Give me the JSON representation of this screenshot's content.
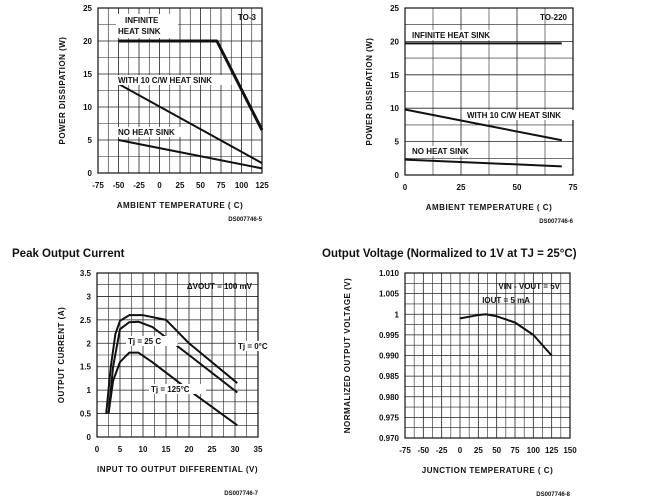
{
  "chart_data": [
    {
      "type": "line",
      "title": "",
      "xlabel": "AMBIENT TEMPERATURE ( C)",
      "ylabel": "POWER DISSIPATION (W)",
      "xlim": [
        -75,
        125
      ],
      "ylim": [
        0,
        25
      ],
      "xticks": [
        -75,
        -50,
        -25,
        0,
        25,
        50,
        75,
        100,
        125
      ],
      "yticks": [
        0,
        5,
        10,
        15,
        20,
        25
      ],
      "grid": true,
      "annotation": "TO-3",
      "code": "DS007746-5",
      "series": [
        {
          "name": "INFINITE HEAT SINK",
          "x": [
            -50,
            70,
            125
          ],
          "y": [
            20,
            20,
            6.5
          ],
          "width": 3
        },
        {
          "name": "WITH 10 C/W HEAT SINK",
          "x": [
            -50,
            125
          ],
          "y": [
            13.5,
            1.5
          ],
          "width": 2
        },
        {
          "name": "NO HEAT SINK",
          "x": [
            -50,
            125
          ],
          "y": [
            5,
            0.7
          ],
          "width": 2
        }
      ]
    },
    {
      "type": "line",
      "title": "",
      "xlabel": "AMBIENT TEMPERATURE ( C)",
      "ylabel": "POWER DISSIPATION (W)",
      "xlim": [
        0,
        75
      ],
      "ylim": [
        0,
        25
      ],
      "xticks": [
        0,
        25,
        50,
        75
      ],
      "yticks": [
        0,
        5,
        10,
        15,
        20,
        25
      ],
      "grid": true,
      "annotation": "TO-220",
      "code": "DS007746-6",
      "series": [
        {
          "name": "INFINITE HEAT SINK",
          "x": [
            0,
            70
          ],
          "y": [
            19.7,
            19.7
          ],
          "width": 2
        },
        {
          "name": "WITH 10 C/W HEAT SINK",
          "x": [
            0,
            70
          ],
          "y": [
            9.8,
            5.2
          ],
          "width": 2
        },
        {
          "name": "NO HEAT SINK",
          "x": [
            0,
            70
          ],
          "y": [
            2.3,
            1.3
          ],
          "width": 2
        }
      ]
    },
    {
      "type": "line",
      "title": "Peak Output Current",
      "xlabel": "INPUT TO OUTPUT DIFFERENTIAL (V)",
      "ylabel": "OUTPUT CURRENT (A)",
      "xlim": [
        0,
        35
      ],
      "ylim": [
        0,
        3.5
      ],
      "xticks": [
        0,
        5,
        10,
        15,
        20,
        25,
        30,
        35
      ],
      "yticks": [
        0,
        0.5,
        1,
        1.5,
        2,
        2.5,
        3,
        3.5
      ],
      "grid": true,
      "annotation": "ΔVOUT = 100 mV",
      "code": "DS007746-7",
      "series": [
        {
          "name": "Tj = 0°C",
          "x": [
            2,
            3,
            4,
            5,
            7,
            10,
            15,
            20,
            30.5
          ],
          "y": [
            0.5,
            1.5,
            2.2,
            2.48,
            2.6,
            2.6,
            2.5,
            2.0,
            1.15
          ],
          "width": 2
        },
        {
          "name": "Tj = 25 C",
          "x": [
            2.5,
            3.5,
            5,
            7,
            9,
            12,
            20,
            30.5
          ],
          "y": [
            0.5,
            1.5,
            2.3,
            2.45,
            2.46,
            2.35,
            1.75,
            0.95
          ],
          "width": 2
        },
        {
          "name": "Tj = 125°C",
          "x": [
            2.5,
            3.5,
            5,
            7,
            9,
            12,
            20,
            30.5
          ],
          "y": [
            0.5,
            1.2,
            1.6,
            1.8,
            1.8,
            1.6,
            1.0,
            0.25
          ],
          "width": 2
        }
      ]
    },
    {
      "type": "line",
      "title": "Output Voltage (Normalized to 1V at TJ = 25°C)",
      "xlabel": "JUNCTION TEMPERATURE ( C)",
      "ylabel": "NORMALIZED OUTPUT VOLTAGE (V)",
      "xlim": [
        -75,
        150
      ],
      "ylim": [
        0.97,
        1.01
      ],
      "xticks": [
        -75,
        -50,
        -25,
        0,
        25,
        50,
        75,
        100,
        125,
        150
      ],
      "yticks": [
        "0.970",
        "0.975",
        "0.980",
        "0.985",
        "0.990",
        "0.995",
        "1",
        "1.005",
        "1.010"
      ],
      "grid": true,
      "annotation": "VIN - VOUT = 5V",
      "annotation2": "IOUT = 5 mA",
      "code": "DS007746-8",
      "series": [
        {
          "x": [
            0,
            25,
            35,
            50,
            75,
            100,
            125
          ],
          "y": [
            0.999,
            0.9998,
            1.0,
            0.9995,
            0.998,
            0.995,
            0.99
          ],
          "width": 2
        }
      ]
    }
  ]
}
